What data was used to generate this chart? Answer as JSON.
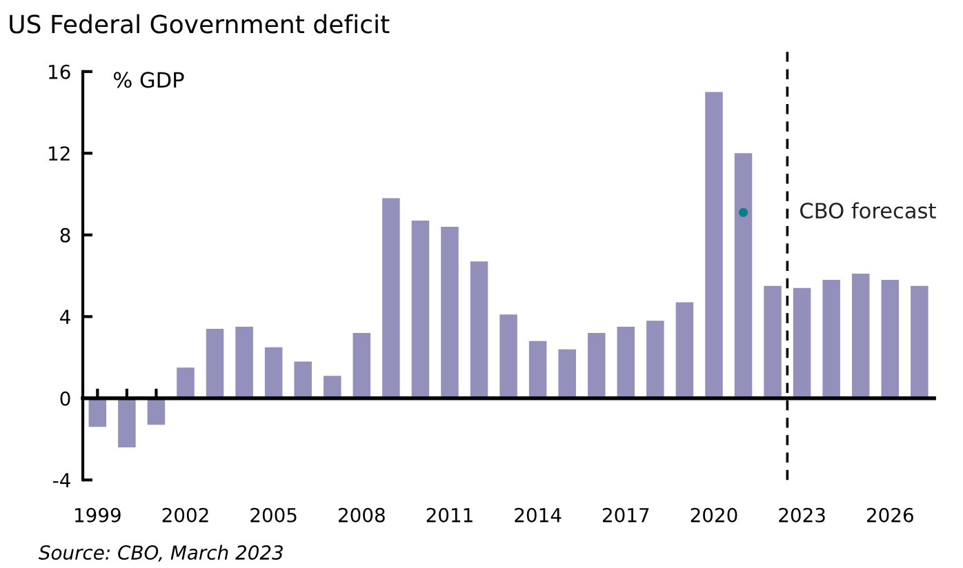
{
  "chart_data": {
    "type": "bar",
    "title": "US Federal Government deficit",
    "ylabel": "% GDP",
    "x": [
      1999,
      2000,
      2001,
      2002,
      2003,
      2004,
      2005,
      2006,
      2007,
      2008,
      2009,
      2010,
      2011,
      2012,
      2013,
      2014,
      2015,
      2016,
      2017,
      2018,
      2019,
      2020,
      2021,
      2022,
      2023,
      2024,
      2025,
      2026,
      2027
    ],
    "series": [
      {
        "color": "#9390bb",
        "values": [
          -1.4,
          -2.4,
          -1.3,
          1.5,
          3.4,
          3.5,
          2.5,
          1.8,
          1.1,
          3.2,
          9.8,
          8.7,
          8.4,
          6.7,
          4.1,
          2.8,
          2.4,
          3.2,
          3.5,
          3.8,
          4.7,
          15.0,
          12.0,
          5.5,
          5.4,
          5.8,
          6.1,
          5.8,
          5.5
        ]
      },
      {
        "type": "scatter",
        "color": "#0e7c86",
        "x": [
          2021
        ],
        "values": [
          9.1
        ],
        "marker": "circle"
      }
    ],
    "xlim": [
      1998.5,
      2027.5
    ],
    "xticks": [
      1999,
      {
        "value": 2000,
        "label": null
      },
      {
        "value": 2001,
        "label": null
      },
      2002,
      {
        "value": 2003,
        "label": null
      },
      {
        "value": 2004,
        "label": null
      },
      2005,
      {
        "value": 2006,
        "label": null
      },
      {
        "value": 2007,
        "label": null
      },
      2008,
      {
        "value": 2009,
        "label": null
      },
      {
        "value": 2010,
        "label": null
      },
      2011,
      {
        "value": 2012,
        "label": null
      },
      {
        "value": 2013,
        "label": null
      },
      2014,
      {
        "value": 2015,
        "label": null
      },
      {
        "value": 2016,
        "label": null
      },
      2017,
      {
        "value": 2018,
        "label": null
      },
      {
        "value": 2019,
        "label": null
      },
      2020,
      {
        "value": 2021,
        "label": null
      },
      {
        "value": 2022,
        "label": null
      },
      2023,
      {
        "value": 2024,
        "label": null
      },
      {
        "value": 2025,
        "label": null
      },
      2026,
      {
        "value": 2027,
        "label": null
      }
    ],
    "ylim": [
      -4,
      16
    ],
    "yticks": [
      -4,
      0,
      4,
      8,
      12,
      16
    ],
    "ref_lines": [
      {
        "axis": "x",
        "value": 2022.5,
        "label": "CBO forecast",
        "color": "#000000",
        "line_style": "dashed"
      }
    ],
    "annotations": [
      "Source: CBO, March 2023"
    ],
    "legend": false
  }
}
